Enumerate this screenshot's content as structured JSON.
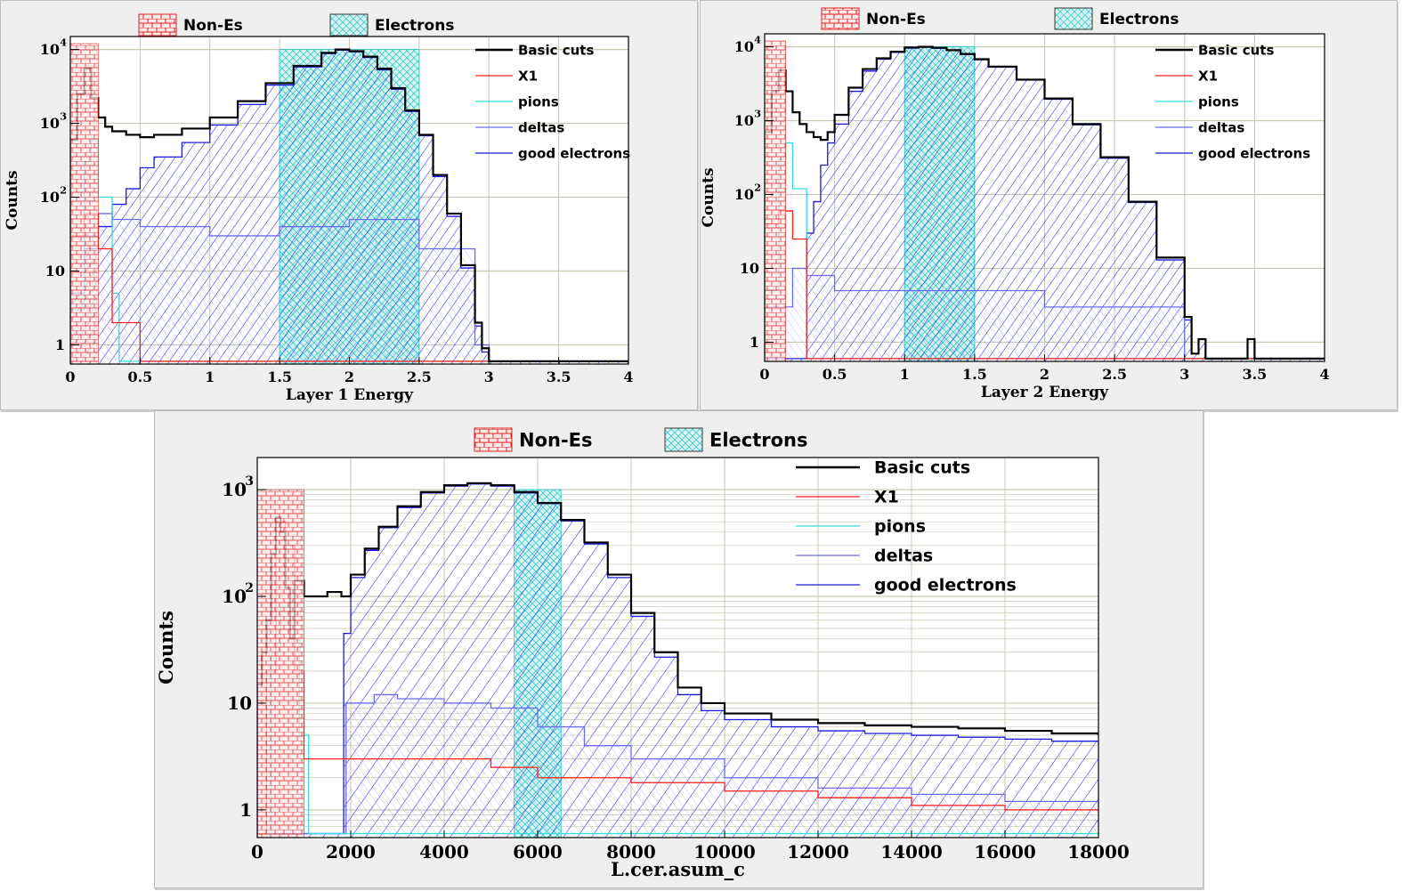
{
  "colors": {
    "panel_bg": "#efefef",
    "grid": "#c8c8b4",
    "basic_cuts": "#000000",
    "x1": "#ff1a1a",
    "pions": "#33dddd",
    "deltas": "#6a6af2",
    "good_electrons": "#1a1adc",
    "non_es_fill": "#e02020",
    "electrons_fill": "#22c4c4"
  },
  "legend": {
    "non_es": "Non-Es",
    "electrons": "Electrons",
    "basic_cuts": "Basic cuts",
    "x1": "X1",
    "pions": "pions",
    "deltas": "deltas",
    "good_electrons": "good electrons"
  },
  "chart_data": [
    {
      "type": "histogram",
      "scale_y": "log",
      "xlabel": "Layer 1 Energy",
      "ylabel": "Counts",
      "xlim": [
        0,
        4
      ],
      "ylim": [
        0.55,
        15000
      ],
      "x_ticks": [
        "0",
        "0.5",
        "1",
        "1.5",
        "2",
        "2.5",
        "3",
        "3.5",
        "4"
      ],
      "y_ticks": [
        {
          "base": "1",
          "exp": ""
        },
        {
          "base": "10",
          "exp": ""
        },
        {
          "base": "10",
          "exp": "2"
        },
        {
          "base": "10",
          "exp": "3"
        },
        {
          "base": "10",
          "exp": "4"
        }
      ],
      "cut_regions": {
        "non_es": [
          0,
          0.2
        ],
        "electrons": [
          1.5,
          2.5
        ]
      },
      "series": [
        {
          "name": "Basic cuts",
          "x": [
            0,
            0.05,
            0.1,
            0.15,
            0.2,
            0.25,
            0.3,
            0.4,
            0.5,
            0.6,
            0.8,
            1.0,
            1.2,
            1.4,
            1.6,
            1.8,
            1.9,
            2.0,
            2.1,
            2.2,
            2.3,
            2.4,
            2.5,
            2.6,
            2.7,
            2.8,
            2.9,
            2.95,
            3.0,
            3.5,
            4.0
          ],
          "y": [
            600,
            2500,
            5500,
            2200,
            1200,
            900,
            780,
            700,
            650,
            700,
            850,
            1200,
            2000,
            3500,
            6000,
            9000,
            10000,
            9500,
            8000,
            5500,
            3000,
            1500,
            700,
            200,
            60,
            12,
            2,
            0.9,
            0.6,
            0.6,
            0.6
          ]
        },
        {
          "name": "X1",
          "x": [
            0,
            0.1,
            0.2,
            0.3,
            0.5,
            1.0,
            2.0,
            4.0
          ],
          "y": [
            30,
            60,
            20,
            2,
            0.6,
            0.6,
            0.6,
            0.6
          ]
        },
        {
          "name": "pions",
          "x": [
            0,
            0.1,
            0.15,
            0.2,
            0.3,
            0.35,
            1.0,
            4.0
          ],
          "y": [
            3,
            300,
            600,
            100,
            5,
            0.6,
            0.6,
            0.6
          ]
        },
        {
          "name": "deltas",
          "x": [
            0,
            0.1,
            0.2,
            0.3,
            0.5,
            1.0,
            1.5,
            2.0,
            2.5,
            2.9,
            3.0,
            4.0
          ],
          "y": [
            5,
            30,
            60,
            50,
            40,
            30,
            40,
            50,
            20,
            1,
            0.6,
            0.6
          ]
        },
        {
          "name": "good electrons",
          "x": [
            0,
            0.1,
            0.2,
            0.3,
            0.4,
            0.5,
            0.6,
            0.8,
            1.0,
            1.2,
            1.4,
            1.6,
            1.8,
            1.9,
            2.0,
            2.1,
            2.2,
            2.3,
            2.4,
            2.5,
            2.6,
            2.7,
            2.8,
            2.9,
            2.95,
            3.0,
            4.0
          ],
          "y": [
            5,
            20,
            40,
            80,
            130,
            250,
            350,
            550,
            950,
            1800,
            3300,
            5800,
            8800,
            9800,
            9300,
            7800,
            5300,
            2900,
            1450,
            680,
            190,
            55,
            11,
            1.8,
            0.8,
            0.6,
            0.6
          ]
        }
      ]
    },
    {
      "type": "histogram",
      "scale_y": "log",
      "xlabel": "Layer 2 Energy",
      "ylabel": "Counts",
      "xlim": [
        0,
        4
      ],
      "ylim": [
        0.55,
        15000
      ],
      "x_ticks": [
        "0",
        "0.5",
        "1",
        "1.5",
        "2",
        "2.5",
        "3",
        "3.5",
        "4"
      ],
      "y_ticks": [
        {
          "base": "1",
          "exp": ""
        },
        {
          "base": "10",
          "exp": ""
        },
        {
          "base": "10",
          "exp": "2"
        },
        {
          "base": "10",
          "exp": "3"
        },
        {
          "base": "10",
          "exp": "4"
        }
      ],
      "cut_regions": {
        "non_es": [
          0,
          0.15
        ],
        "electrons": [
          1.0,
          1.5
        ]
      },
      "series": [
        {
          "name": "Basic cuts",
          "x": [
            0,
            0.05,
            0.1,
            0.15,
            0.2,
            0.25,
            0.3,
            0.35,
            0.4,
            0.45,
            0.5,
            0.6,
            0.7,
            0.8,
            0.9,
            1.0,
            1.1,
            1.2,
            1.3,
            1.4,
            1.5,
            1.6,
            1.8,
            2.0,
            2.2,
            2.4,
            2.6,
            2.8,
            3.0,
            3.05,
            3.1,
            3.15,
            3.45,
            3.5,
            4.0
          ],
          "y": [
            700,
            2500,
            4800,
            2500,
            1300,
            900,
            700,
            600,
            550,
            700,
            1200,
            2800,
            5000,
            7000,
            8600,
            9800,
            10000,
            9700,
            9000,
            8000,
            6800,
            5400,
            3600,
            2000,
            900,
            320,
            80,
            14,
            2.2,
            0.7,
            1.1,
            0.6,
            1.1,
            0.6,
            0.6
          ]
        },
        {
          "name": "X1",
          "x": [
            0,
            0.1,
            0.2,
            0.3,
            1.0,
            4.0
          ],
          "y": [
            40,
            60,
            25,
            0.6,
            0.6,
            0.6
          ]
        },
        {
          "name": "pions",
          "x": [
            0,
            0.1,
            0.15,
            0.2,
            0.3,
            1.0,
            4.0
          ],
          "y": [
            5,
            300,
            500,
            120,
            0.6,
            0.6,
            0.6
          ]
        },
        {
          "name": "deltas",
          "x": [
            0,
            0.2,
            0.3,
            0.5,
            1.0,
            2.0,
            3.0,
            4.0
          ],
          "y": [
            3,
            10,
            8,
            5,
            5,
            3,
            0.6,
            0.6
          ]
        },
        {
          "name": "good electrons",
          "x": [
            0,
            0.3,
            0.35,
            0.4,
            0.45,
            0.5,
            0.6,
            0.7,
            0.8,
            0.9,
            1.0,
            1.1,
            1.2,
            1.3,
            1.4,
            1.5,
            1.6,
            1.8,
            2.0,
            2.2,
            2.4,
            2.6,
            2.8,
            3.0,
            3.05,
            3.1,
            3.15,
            4.0
          ],
          "y": [
            0.6,
            30,
            80,
            250,
            500,
            900,
            2500,
            4700,
            6800,
            8400,
            9600,
            9900,
            9600,
            8900,
            7900,
            6700,
            5300,
            3550,
            1950,
            880,
            310,
            78,
            13,
            2,
            0.7,
            1.1,
            0.6,
            0.6
          ]
        }
      ]
    },
    {
      "type": "histogram",
      "scale_y": "log",
      "xlabel": "L.cer.asum_c",
      "ylabel": "Counts",
      "xlim": [
        0,
        18000
      ],
      "ylim": [
        0.55,
        2000
      ],
      "x_ticks": [
        "0",
        "2000",
        "4000",
        "6000",
        "8000",
        "10000",
        "12000",
        "14000",
        "16000",
        "18000"
      ],
      "y_ticks": [
        {
          "base": "1",
          "exp": ""
        },
        {
          "base": "10",
          "exp": ""
        },
        {
          "base": "10",
          "exp": "2"
        },
        {
          "base": "10",
          "exp": "3"
        }
      ],
      "cut_regions": {
        "non_es": [
          0,
          1000
        ],
        "electrons": [
          5500,
          6500
        ]
      },
      "series": [
        {
          "name": "Basic cuts",
          "x": [
            0,
            100,
            200,
            300,
            400,
            500,
            600,
            700,
            800,
            1000,
            1200,
            1500,
            1800,
            2000,
            2300,
            2600,
            3000,
            3500,
            4000,
            4500,
            5000,
            5500,
            6000,
            6500,
            7000,
            7500,
            8000,
            8500,
            9000,
            9500,
            10000,
            11000,
            12000,
            13000,
            14000,
            15000,
            16000,
            17000,
            18000
          ],
          "y": [
            15,
            30,
            60,
            250,
            550,
            400,
            120,
            40,
            140,
            100,
            100,
            110,
            100,
            160,
            280,
            450,
            700,
            950,
            1100,
            1150,
            1100,
            950,
            750,
            520,
            320,
            160,
            70,
            30,
            14,
            10,
            8,
            7,
            6.5,
            6.2,
            6,
            5.8,
            5.5,
            5.2,
            5
          ]
        },
        {
          "name": "X1",
          "x": [
            0,
            200,
            400,
            600,
            800,
            1000,
            2000,
            3000,
            4000,
            5000,
            6000,
            8000,
            10000,
            12000,
            14000,
            16000,
            18000
          ],
          "y": [
            0.6,
            20,
            500,
            300,
            20,
            3,
            3,
            3,
            3,
            2.5,
            2,
            1.8,
            1.5,
            1.3,
            1.1,
            1,
            1
          ]
        },
        {
          "name": "pions",
          "x": [
            0,
            300,
            500,
            700,
            900,
            1100,
            2000,
            18000
          ],
          "y": [
            0.6,
            30,
            80,
            40,
            5,
            0.6,
            0.6,
            0.6
          ]
        },
        {
          "name": "deltas",
          "x": [
            0,
            1800,
            1900,
            2500,
            3000,
            4000,
            5000,
            6000,
            7000,
            8000,
            10000,
            12000,
            14000,
            16000,
            18000
          ],
          "y": [
            0.6,
            0.6,
            10,
            12,
            11,
            10,
            9,
            6,
            4,
            3,
            2,
            1.6,
            1.4,
            1.2,
            1
          ]
        },
        {
          "name": "good electrons",
          "x": [
            0,
            1800,
            1850,
            2000,
            2300,
            2600,
            3000,
            3500,
            4000,
            4500,
            5000,
            5500,
            6000,
            6500,
            7000,
            7500,
            8000,
            8500,
            9000,
            9500,
            10000,
            11000,
            12000,
            13000,
            14000,
            15000,
            16000,
            17000,
            18000
          ],
          "y": [
            0.6,
            0.6,
            45,
            150,
            270,
            440,
            680,
            930,
            1080,
            1130,
            1080,
            930,
            740,
            510,
            310,
            150,
            65,
            27,
            12,
            8.5,
            7,
            6,
            5.5,
            5.2,
            5,
            4.8,
            4.6,
            4.4,
            4.2
          ]
        }
      ]
    }
  ]
}
